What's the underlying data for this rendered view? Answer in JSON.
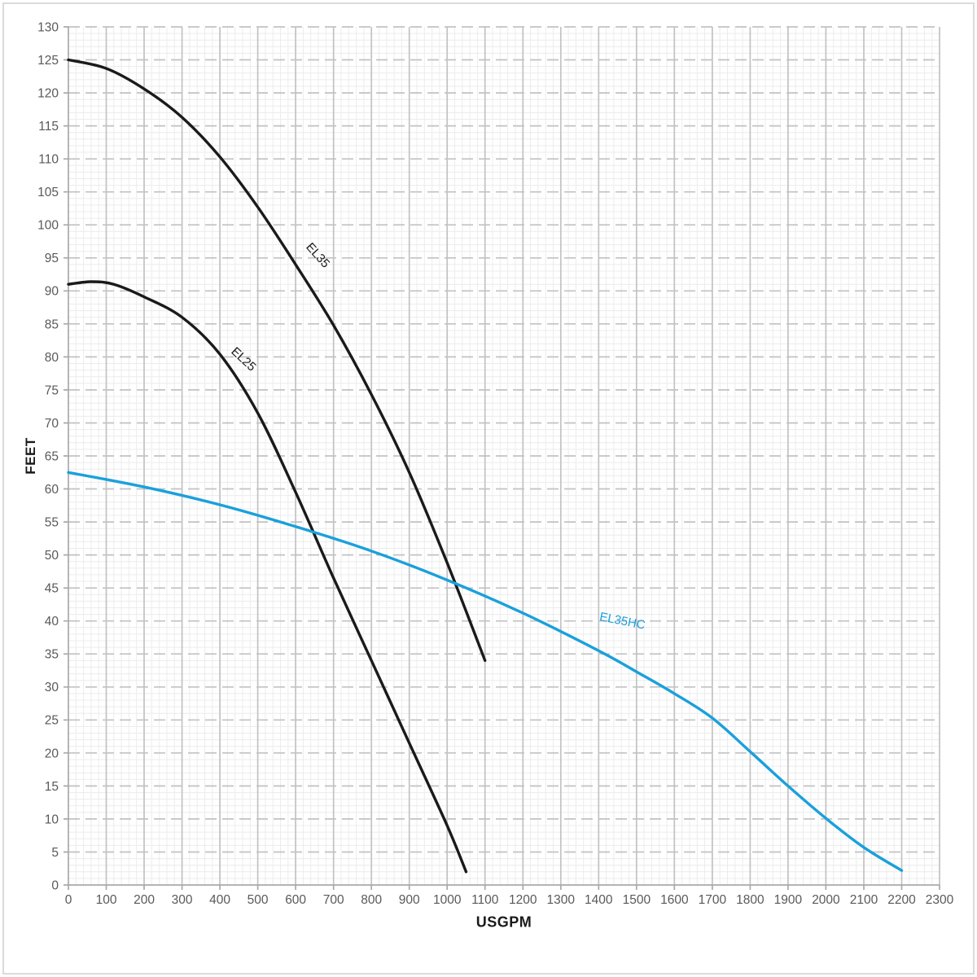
{
  "chart_data": {
    "type": "line",
    "title": "",
    "xlabel": "USGPM",
    "ylabel": "FEET",
    "xlim": [
      0,
      2300
    ],
    "ylim": [
      0,
      130
    ],
    "x_major_interval": 100,
    "y_major_interval": 5,
    "x_minor_interval": 20,
    "y_minor_interval": 1,
    "grid": "major solid vertical, major dashed horizontal, fine minor grid both directions",
    "legend_position": "inline curve labels",
    "x_ticks": [
      0,
      100,
      200,
      300,
      400,
      500,
      600,
      700,
      800,
      900,
      1000,
      1100,
      1200,
      1300,
      1400,
      1500,
      1600,
      1700,
      1800,
      1900,
      2000,
      2100,
      2200,
      2300
    ],
    "y_ticks": [
      0,
      5,
      10,
      15,
      20,
      25,
      30,
      35,
      40,
      45,
      50,
      55,
      60,
      65,
      70,
      75,
      80,
      85,
      90,
      95,
      100,
      105,
      110,
      115,
      120,
      125,
      130
    ],
    "series": [
      {
        "name": "EL35",
        "color": "#1a1a1a",
        "label_anchor": {
          "x": 626,
          "y": 96.6
        },
        "label_angle_deg": 48,
        "points": [
          [
            0,
            125
          ],
          [
            100,
            123.7
          ],
          [
            200,
            120.6
          ],
          [
            300,
            116.3
          ],
          [
            400,
            110.3
          ],
          [
            500,
            102.7
          ],
          [
            600,
            94
          ],
          [
            700,
            84.8
          ],
          [
            800,
            74.3
          ],
          [
            900,
            62.5
          ],
          [
            1000,
            48.8
          ],
          [
            1100,
            34
          ]
        ]
      },
      {
        "name": "EL25",
        "color": "#1a1a1a",
        "label_anchor": {
          "x": 428,
          "y": 80.7
        },
        "label_angle_deg": 43,
        "points": [
          [
            0,
            91
          ],
          [
            60,
            91.4
          ],
          [
            120,
            91
          ],
          [
            200,
            89.1
          ],
          [
            300,
            86
          ],
          [
            400,
            80.4
          ],
          [
            500,
            71.5
          ],
          [
            600,
            59.5
          ],
          [
            700,
            46.5
          ],
          [
            800,
            34
          ],
          [
            900,
            21.5
          ],
          [
            1000,
            9
          ],
          [
            1050,
            2
          ]
        ]
      },
      {
        "name": "EL35HC",
        "color": "#1aa0dc",
        "label_anchor": {
          "x": 1401,
          "y": 40.1
        },
        "label_angle_deg": 11,
        "points": [
          [
            0,
            62.5
          ],
          [
            200,
            60.3
          ],
          [
            400,
            57.6
          ],
          [
            600,
            54.3
          ],
          [
            800,
            50.6
          ],
          [
            1000,
            46.2
          ],
          [
            1200,
            41.2
          ],
          [
            1400,
            35.5
          ],
          [
            1500,
            32.3
          ],
          [
            1600,
            29
          ],
          [
            1700,
            25.3
          ],
          [
            1800,
            20.2
          ],
          [
            1900,
            15
          ],
          [
            2000,
            10.1
          ],
          [
            2100,
            5.7
          ],
          [
            2200,
            2.2
          ]
        ]
      }
    ]
  },
  "colors": {
    "background": "#ffffff",
    "frame_border": "#d9dbdc",
    "axis_line": "#a9a9a9",
    "major_grid": "#c2c2c2",
    "minor_grid": "#ececec",
    "tick_label": "#595959",
    "axis_title": "#1a1a1a"
  }
}
